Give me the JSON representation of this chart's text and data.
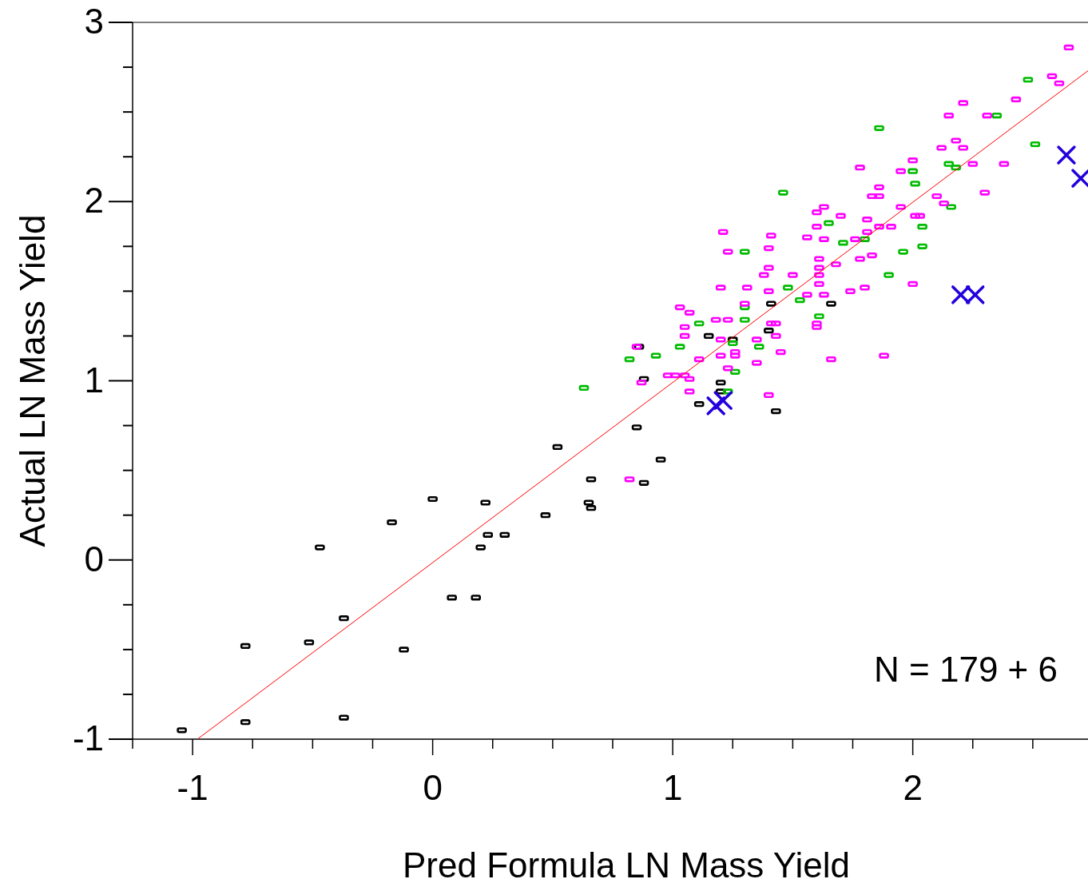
{
  "chart_data": {
    "type": "scatter",
    "xlabel": "Pred Formula LN Mass Yield",
    "ylabel": "Actual LN Mass Yield",
    "xlim": [
      -1.25,
      2.73
    ],
    "ylim": [
      -1,
      3
    ],
    "xticks": [
      {
        "value": -1.25,
        "label": null
      },
      -1,
      {
        "value": -0.75,
        "label": null
      },
      {
        "value": -0.5,
        "label": null
      },
      {
        "value": -0.25,
        "label": null
      },
      0,
      {
        "value": 0.25,
        "label": null
      },
      {
        "value": 0.5,
        "label": null
      },
      {
        "value": 0.75,
        "label": null
      },
      1,
      {
        "value": 1.25,
        "label": null
      },
      {
        "value": 1.5,
        "label": null
      },
      {
        "value": 1.75,
        "label": null
      },
      2,
      {
        "value": 2.25,
        "label": null
      },
      {
        "value": 2.5,
        "label": null
      }
    ],
    "yticks": [
      -1,
      {
        "value": -0.75,
        "label": null
      },
      {
        "value": -0.5,
        "label": null
      },
      {
        "value": -0.25,
        "label": null
      },
      0,
      {
        "value": 0.25,
        "label": null
      },
      {
        "value": 0.5,
        "label": null
      },
      {
        "value": 0.75,
        "label": null
      },
      1,
      {
        "value": 1.25,
        "label": null
      },
      {
        "value": 1.5,
        "label": null
      },
      {
        "value": 1.75,
        "label": null
      },
      2,
      {
        "value": 2.25,
        "label": null
      },
      {
        "value": 2.5,
        "label": null
      },
      {
        "value": 2.75,
        "label": null
      },
      3
    ],
    "annotations": [
      "N = 179 + 6"
    ],
    "series": [
      {
        "color": "#000000",
        "x": [
          -1.045,
          -0.78,
          -0.78,
          -0.515,
          -0.37,
          -0.37,
          -0.47,
          -0.17,
          -0.12,
          0,
          0.08,
          0.18,
          0.2,
          0.22,
          0.23,
          0.3,
          0.47,
          0.52,
          0.65,
          0.66,
          0.66,
          0.85,
          0.88,
          0.95,
          0.88,
          0.86,
          1.11,
          1.15,
          1.2,
          1.2,
          1.25,
          1.4,
          1.41,
          1.43,
          1.66
        ],
        "values": [
          -0.95,
          -0.905,
          -0.48,
          -0.46,
          -0.325,
          -0.88,
          0.07,
          0.21,
          -0.5,
          0.34,
          -0.21,
          -0.21,
          0.07,
          0.32,
          0.14,
          0.14,
          0.25,
          0.63,
          0.32,
          0.29,
          0.45,
          0.74,
          0.43,
          0.56,
          1.01,
          1.19,
          0.87,
          1.25,
          0.99,
          0.94,
          1.23,
          1.28,
          1.43,
          0.83,
          1.43
        ]
      },
      {
        "color": "#00bb00",
        "x": [
          0.63,
          0.82,
          0.93,
          1.03,
          1.11,
          1.23,
          1.25,
          1.26,
          1.3,
          1.3,
          1.3,
          1.36,
          1.46,
          1.86,
          1.48,
          1.53,
          1.61,
          1.65,
          1.71,
          1.8,
          1.9,
          1.96,
          2.0,
          2.01,
          2.04,
          2.04,
          2.15,
          2.16,
          2.18,
          2.35,
          2.48,
          2.51
        ],
        "values": [
          0.96,
          1.12,
          1.14,
          1.19,
          1.32,
          0.94,
          1.21,
          1.05,
          1.72,
          1.41,
          1.34,
          1.19,
          2.05,
          2.41,
          1.52,
          1.45,
          1.36,
          1.88,
          1.77,
          1.79,
          1.59,
          1.72,
          2.17,
          2.1,
          1.75,
          1.86,
          2.21,
          1.97,
          2.19,
          2.48,
          2.68,
          2.32
        ]
      },
      {
        "color": "#ff00ff",
        "x": [
          0.82,
          0.85,
          0.87,
          0.98,
          1.03,
          1.05,
          1.07,
          1.05,
          1.01,
          1.05,
          1.07,
          1.07,
          1.11,
          1.18,
          1.23,
          1.2,
          1.21,
          1.23,
          1.2,
          1.2,
          1.23,
          1.26,
          1.26,
          1.31,
          1.3,
          1.35,
          1.35,
          1.38,
          1.4,
          1.4,
          1.41,
          1.4,
          1.41,
          1.43,
          1.4,
          1.45,
          1.43,
          1.5,
          1.56,
          1.6,
          1.63,
          1.6,
          1.61,
          1.61,
          1.61,
          1.61,
          1.63,
          1.56,
          1.6,
          1.6,
          1.63,
          1.66,
          1.68,
          1.7,
          1.74,
          1.78,
          1.76,
          1.81,
          1.81,
          1.83,
          1.78,
          1.8,
          1.83,
          1.86,
          1.86,
          1.86,
          1.88,
          1.91,
          1.95,
          1.95,
          2.0,
          2.01,
          2.03,
          2.0,
          2.1,
          2.12,
          2.15,
          2.18,
          2.21,
          2.21,
          2.25,
          2.3,
          2.31,
          2.38,
          2.43,
          2.58,
          2.61,
          2.65,
          2.13
        ],
        "values": [
          0.45,
          1.19,
          0.99,
          1.03,
          1.41,
          1.3,
          1.38,
          1.25,
          1.03,
          1.03,
          1.01,
          0.94,
          1.12,
          1.34,
          1.34,
          1.52,
          1.83,
          1.72,
          1.23,
          1.14,
          1.07,
          1.16,
          1.14,
          1.52,
          1.43,
          1.23,
          1.1,
          1.59,
          1.63,
          1.74,
          1.81,
          0.92,
          1.32,
          1.32,
          1.5,
          1.16,
          1.25,
          1.59,
          1.8,
          1.94,
          1.97,
          1.86,
          1.68,
          1.63,
          1.59,
          1.54,
          1.48,
          1.48,
          1.32,
          1.3,
          1.79,
          1.12,
          1.65,
          1.92,
          1.5,
          1.68,
          1.79,
          1.9,
          1.83,
          1.7,
          2.19,
          1.52,
          2.03,
          2.08,
          2.03,
          1.86,
          1.14,
          1.86,
          1.97,
          2.17,
          2.23,
          1.92,
          1.92,
          1.54,
          2.03,
          2.3,
          2.48,
          2.34,
          2.55,
          2.3,
          2.21,
          2.05,
          2.48,
          2.21,
          2.57,
          2.7,
          2.66,
          2.86,
          1.99
        ]
      },
      {
        "color": "#2200dd",
        "marker": "cross",
        "x": [
          1.18,
          1.21,
          2.2,
          2.26,
          2.64,
          2.7
        ],
        "values": [
          0.86,
          0.89,
          1.48,
          1.48,
          2.26,
          2.13
        ]
      },
      {
        "type": "line",
        "color": "#ff0000",
        "x": [
          -0.98,
          2.73
        ],
        "values": [
          -1,
          2.73
        ]
      }
    ]
  }
}
